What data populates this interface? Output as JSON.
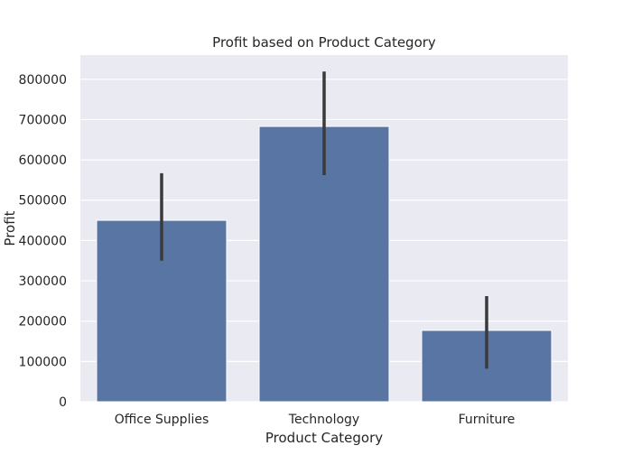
{
  "chart_data": {
    "type": "bar",
    "title": "Profit based on Product Category",
    "xlabel": "Product Category",
    "ylabel": "Profit",
    "categories": [
      "Office Supplies",
      "Technology",
      "Furniture"
    ],
    "values": [
      450000,
      683000,
      177000
    ],
    "error_bars": [
      [
        350000,
        567000
      ],
      [
        562000,
        819000
      ],
      [
        82000,
        262000
      ]
    ],
    "ylim": [
      0,
      860000
    ],
    "yticks": [
      0,
      100000,
      200000,
      300000,
      400000,
      500000,
      600000,
      700000,
      800000
    ],
    "ytick_labels": [
      "0",
      "100000",
      "200000",
      "300000",
      "400000",
      "500000",
      "600000",
      "700000",
      "800000"
    ],
    "grid": true,
    "colors": {
      "bar": "#5975a4",
      "error_bar": "#3a3a3a",
      "plot_background": "#eaeaf2",
      "grid": "#ffffff"
    }
  }
}
